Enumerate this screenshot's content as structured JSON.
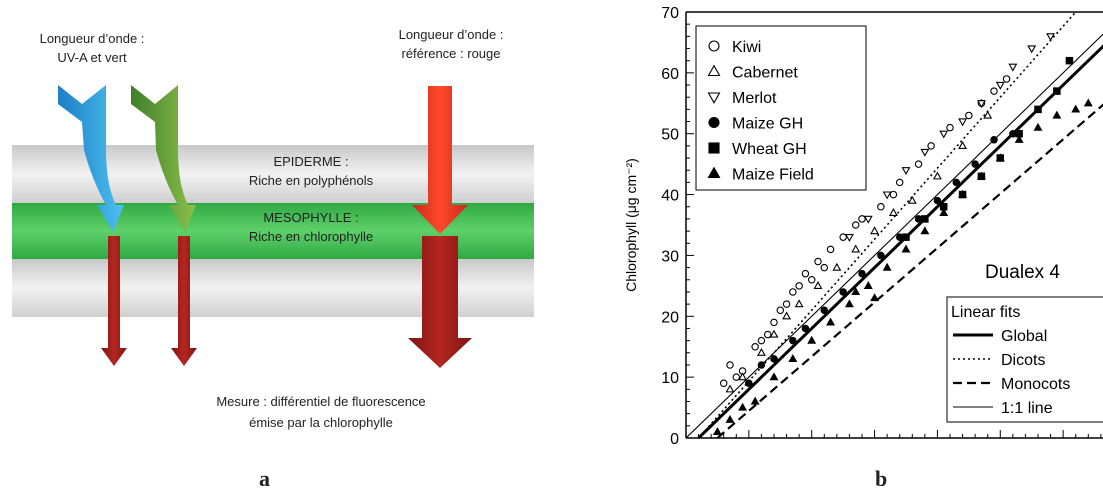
{
  "panel_a": {
    "letter": "a",
    "uv_label_line1": "Longueur d’onde :",
    "uv_label_line2": "UV-A et vert",
    "ref_label_line1": "Longueur d’onde :",
    "ref_label_line2": "référence : rouge",
    "epiderme_line1": "EPIDERME :",
    "epiderme_line2": "Riche en polyphénols",
    "mesophylle_line1": "MESOPHYLLE :",
    "mesophylle_line2": "Riche en chlorophylle",
    "mesure_line1": "Mesure : différentiel de fluorescence",
    "mesure_line2": "émise par la chlorophylle",
    "colors": {
      "epiderme": "#d9d9d9",
      "mesophylle": "#3cb54a",
      "uv_arrow": "#2a9fdc",
      "green_arrow": "#5a9a3a",
      "red_arrow": "#e8321e",
      "fluo_arrow": "#a11e1a"
    }
  },
  "chart_data": {
    "type": "scatter",
    "letter": "b",
    "ylabel": "Chlorophyll (μg cm⁻²)",
    "annotation": "Dualex 4",
    "xlim": [
      0,
      70
    ],
    "ylim": [
      0,
      70
    ],
    "yticks": [
      0,
      10,
      20,
      30,
      40,
      50,
      60,
      70
    ],
    "legend_placement": "top-left",
    "series": [
      {
        "name": "Kiwi",
        "marker": "circle-open",
        "points": [
          [
            6,
            9
          ],
          [
            7,
            12
          ],
          [
            9,
            11
          ],
          [
            11,
            15
          ],
          [
            13,
            17
          ],
          [
            14,
            19
          ],
          [
            16,
            22
          ],
          [
            17,
            24
          ],
          [
            19,
            27
          ],
          [
            21,
            29
          ],
          [
            23,
            31
          ],
          [
            25,
            33
          ],
          [
            28,
            36
          ],
          [
            31,
            38
          ],
          [
            34,
            42
          ],
          [
            37,
            45
          ],
          [
            39,
            48
          ],
          [
            42,
            51
          ],
          [
            45,
            53
          ],
          [
            47,
            55
          ],
          [
            49,
            57
          ],
          [
            51,
            59
          ],
          [
            8,
            10
          ],
          [
            12,
            16
          ],
          [
            15,
            21
          ],
          [
            18,
            25
          ],
          [
            20,
            26
          ],
          [
            22,
            28
          ],
          [
            27,
            35
          ],
          [
            33,
            40
          ]
        ]
      },
      {
        "name": "Cabernet",
        "marker": "triangle-up-open",
        "points": [
          [
            7,
            8
          ],
          [
            9,
            10
          ],
          [
            12,
            14
          ],
          [
            14,
            17
          ],
          [
            16,
            20
          ],
          [
            18,
            22
          ],
          [
            21,
            25
          ],
          [
            24,
            28
          ],
          [
            27,
            31
          ],
          [
            30,
            34
          ],
          [
            33,
            37
          ],
          [
            36,
            39
          ],
          [
            40,
            43
          ],
          [
            44,
            48
          ],
          [
            48,
            53
          ]
        ]
      },
      {
        "name": "Merlot",
        "marker": "triangle-down-open",
        "points": [
          [
            26,
            33
          ],
          [
            29,
            36
          ],
          [
            32,
            40
          ],
          [
            35,
            44
          ],
          [
            38,
            47
          ],
          [
            41,
            50
          ],
          [
            44,
            52
          ],
          [
            47,
            55
          ],
          [
            50,
            58
          ],
          [
            52,
            61
          ],
          [
            55,
            64
          ],
          [
            58,
            66
          ]
        ]
      },
      {
        "name": "Maize GH",
        "marker": "circle-filled",
        "points": [
          [
            10,
            9
          ],
          [
            12,
            12
          ],
          [
            14,
            13
          ],
          [
            17,
            16
          ],
          [
            19,
            18
          ],
          [
            22,
            21
          ],
          [
            25,
            24
          ],
          [
            28,
            27
          ],
          [
            31,
            30
          ],
          [
            34,
            33
          ],
          [
            37,
            36
          ],
          [
            40,
            39
          ],
          [
            43,
            42
          ],
          [
            46,
            45
          ],
          [
            49,
            49
          ],
          [
            52,
            50
          ]
        ]
      },
      {
        "name": "Wheat GH",
        "marker": "square-filled",
        "points": [
          [
            35,
            33
          ],
          [
            38,
            36
          ],
          [
            41,
            38
          ],
          [
            44,
            40
          ],
          [
            47,
            43
          ],
          [
            50,
            46
          ],
          [
            53,
            50
          ],
          [
            56,
            54
          ],
          [
            59,
            57
          ],
          [
            61,
            62
          ]
        ]
      },
      {
        "name": "Maize Field",
        "marker": "triangle-up-filled",
        "points": [
          [
            5,
            1
          ],
          [
            7,
            3
          ],
          [
            9,
            5
          ],
          [
            11,
            6
          ],
          [
            14,
            10
          ],
          [
            17,
            13
          ],
          [
            20,
            16
          ],
          [
            23,
            19
          ],
          [
            26,
            22
          ],
          [
            29,
            25
          ],
          [
            32,
            28
          ],
          [
            35,
            31
          ],
          [
            38,
            34
          ],
          [
            41,
            37
          ],
          [
            44,
            40
          ],
          [
            47,
            43
          ],
          [
            50,
            46
          ],
          [
            53,
            49
          ],
          [
            56,
            51
          ],
          [
            59,
            53
          ],
          [
            62,
            54
          ],
          [
            64,
            55
          ],
          [
            27,
            24
          ],
          [
            30,
            23
          ]
        ]
      }
    ],
    "fits_title": "Linear fits",
    "fits": [
      {
        "name": "Global",
        "style": "solid-thick",
        "from": [
          2,
          0
        ],
        "to": [
          70,
          68
        ]
      },
      {
        "name": "Dicots",
        "style": "dotted",
        "from": [
          2,
          0
        ],
        "to": [
          62,
          70
        ]
      },
      {
        "name": "Monocots",
        "style": "dashed",
        "from": [
          5,
          0
        ],
        "to": [
          70,
          58
        ]
      },
      {
        "name": "1:1 line",
        "style": "solid-thin",
        "from": [
          0,
          0
        ],
        "to": [
          70,
          70
        ]
      }
    ]
  }
}
